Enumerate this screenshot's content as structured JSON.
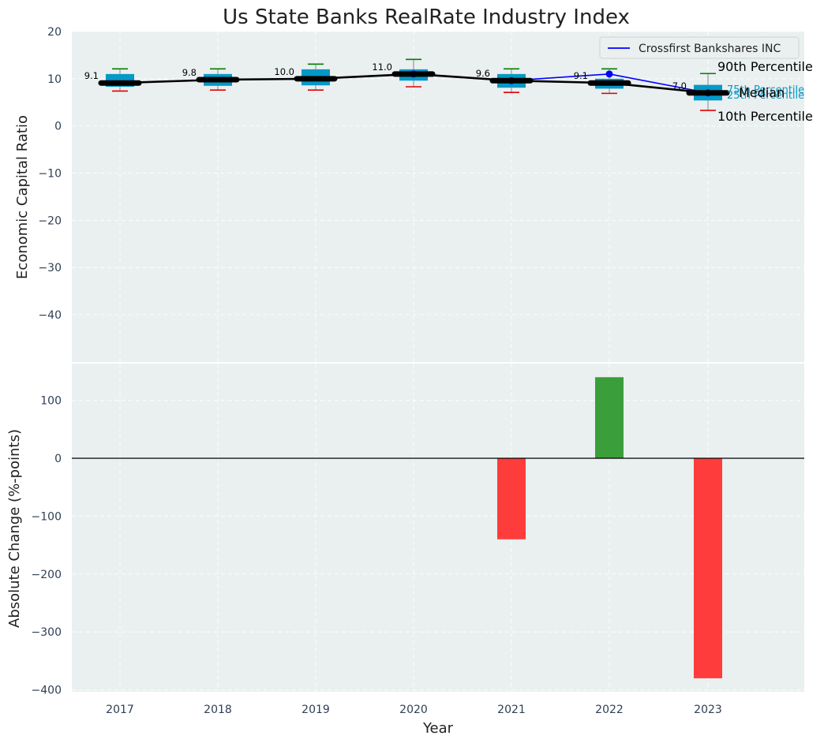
{
  "colors": {
    "panel_bg": "#eaeff0",
    "box": "#0599c8",
    "median": "#000000",
    "company": "#0000ff",
    "whisker_high": "#008000",
    "whisker_low": "#e00000",
    "positive": "#3a9e3a",
    "negative": "#ff3c3c"
  },
  "chart_data": [
    {
      "type": "box",
      "title": "Us State Banks RealRate Industry Index",
      "ylabel": "Economic Capital Ratio",
      "ylim": [
        -50,
        20
      ],
      "yticks": [
        20,
        10,
        0,
        -10,
        -20,
        -30,
        -40
      ],
      "categories": [
        "2017",
        "2018",
        "2019",
        "2020",
        "2021",
        "2022",
        "2023"
      ],
      "p10": [
        7.4,
        7.6,
        7.6,
        8.3,
        7.1,
        6.9,
        3.3
      ],
      "p25": [
        8.3,
        8.5,
        8.6,
        9.6,
        8.1,
        7.9,
        5.4
      ],
      "median": [
        9.1,
        9.8,
        10.0,
        11.0,
        9.6,
        9.1,
        7.0
      ],
      "p75": [
        11.0,
        11.0,
        12.0,
        12.0,
        11.0,
        10.0,
        8.7
      ],
      "p90": [
        12.1,
        12.1,
        13.1,
        14.1,
        12.1,
        12.1,
        11.1
      ],
      "median_labels": [
        "9.1",
        "9.8",
        "10.0",
        "11.0",
        "9.6",
        "9.1",
        "7.0"
      ],
      "series": [
        {
          "name": "Crossfirst Bankshares INC",
          "values": [
            null,
            null,
            null,
            11.0,
            9.6,
            11.0,
            7.0
          ]
        }
      ],
      "legend": {
        "position": "top-right",
        "entries": [
          "Crossfirst Bankshares INC"
        ]
      },
      "annotations": {
        "p90": "90th Percentile",
        "p75": "75th Percentile",
        "median": "Median",
        "p25": "25th Percentile",
        "p10": "10th Percentile"
      }
    },
    {
      "type": "bar",
      "xlabel": "Year",
      "ylabel": "Absolute Change (%-points)",
      "ylim": [
        -400,
        180
      ],
      "yticks": [
        100,
        0,
        -100,
        -200,
        -300,
        -400
      ],
      "categories": [
        "2017",
        "2018",
        "2019",
        "2020",
        "2021",
        "2022",
        "2023"
      ],
      "values": [
        null,
        null,
        null,
        null,
        -140,
        140,
        -380
      ]
    }
  ]
}
